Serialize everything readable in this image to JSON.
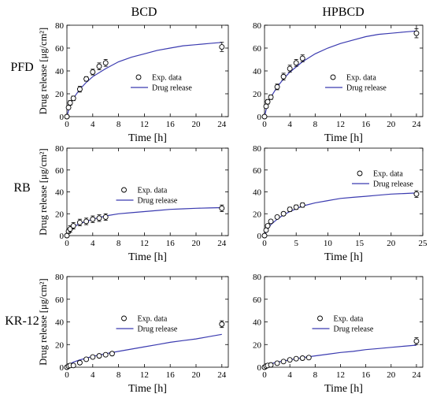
{
  "columns": [
    "BCD",
    "HPBCD"
  ],
  "rows": [
    "PFD",
    "RB",
    "KR-12"
  ],
  "colors": {
    "curve": "#3b3bb0",
    "axis": "#000000",
    "marker": "#000000"
  },
  "chart_data": [
    {
      "type": "line",
      "row": "PFD",
      "column": "BCD",
      "xlabel": "Time [h]",
      "ylabel": "Drug release [μg/cm²]",
      "xlim": [
        0,
        25
      ],
      "ylim": [
        0,
        80
      ],
      "xticks": [
        0,
        4,
        8,
        12,
        16,
        20,
        24
      ],
      "yticks": [
        0,
        20,
        40,
        60,
        80
      ],
      "legend": {
        "position": "center-right",
        "entries": [
          "Exp. data",
          "Drug release"
        ]
      },
      "series": [
        {
          "name": "Exp. data",
          "kind": "markers",
          "x": [
            0,
            0.25,
            0.5,
            1,
            2,
            3,
            4,
            5,
            6,
            24
          ],
          "y": [
            0,
            8,
            12,
            16,
            24,
            33,
            39,
            44,
            47,
            61
          ],
          "err": [
            0,
            1.5,
            2,
            2,
            2.5,
            2,
            2.5,
            3,
            3,
            4
          ]
        },
        {
          "name": "Drug release",
          "kind": "curve",
          "x": [
            0,
            0.5,
            1,
            2,
            3,
            4,
            6,
            8,
            10,
            12,
            14,
            16,
            18,
            20,
            22,
            24
          ],
          "y": [
            0,
            11,
            16,
            24,
            30,
            35,
            42,
            48,
            52,
            55,
            58,
            60,
            62,
            63,
            64,
            65
          ]
        }
      ]
    },
    {
      "type": "line",
      "row": "PFD",
      "column": "HPBCD",
      "xlabel": "Time [h]",
      "ylabel": "",
      "xlim": [
        0,
        25
      ],
      "ylim": [
        0,
        80
      ],
      "xticks": [
        0,
        4,
        8,
        12,
        16,
        20,
        24
      ],
      "yticks": [
        0,
        20,
        40,
        60,
        80
      ],
      "legend": {
        "position": "center-right",
        "entries": [
          "Exp. data",
          "Drug release"
        ]
      },
      "series": [
        {
          "name": "Exp. data",
          "kind": "markers",
          "x": [
            0,
            0.25,
            0.5,
            1,
            2,
            3,
            4,
            5,
            6,
            24
          ],
          "y": [
            0,
            9,
            13,
            17,
            26,
            35,
            42,
            47,
            51,
            73
          ],
          "err": [
            0,
            1.5,
            2,
            2,
            2.5,
            3,
            3,
            3,
            3,
            4
          ]
        },
        {
          "name": "Drug release",
          "kind": "curve",
          "x": [
            0,
            0.5,
            1,
            2,
            3,
            4,
            6,
            8,
            10,
            12,
            14,
            16,
            18,
            20,
            22,
            24
          ],
          "y": [
            0,
            12,
            17,
            26,
            33,
            39,
            48,
            55,
            60,
            64,
            67,
            70,
            72,
            73,
            74,
            75
          ]
        }
      ]
    },
    {
      "type": "line",
      "row": "RB",
      "column": "BCD",
      "xlabel": "Time [h]",
      "ylabel": "Drug release [μg/cm²]",
      "xlim": [
        0,
        25
      ],
      "ylim": [
        0,
        80
      ],
      "xticks": [
        0,
        4,
        8,
        12,
        16,
        20,
        24
      ],
      "yticks": [
        0,
        20,
        40,
        60,
        80
      ],
      "legend": {
        "position": "center",
        "entries": [
          "Exp. data",
          "Drug release"
        ]
      },
      "series": [
        {
          "name": "Exp. data",
          "kind": "markers",
          "x": [
            0,
            0.25,
            0.5,
            1,
            2,
            3,
            4,
            5,
            6,
            24
          ],
          "y": [
            0,
            4,
            6,
            9,
            12,
            13,
            15,
            16,
            17,
            25
          ],
          "err": [
            0,
            2,
            3,
            3,
            3,
            3,
            3,
            3,
            3,
            3
          ]
        },
        {
          "name": "Drug release",
          "kind": "curve",
          "x": [
            0,
            0.5,
            1,
            2,
            3,
            4,
            6,
            8,
            10,
            12,
            14,
            16,
            18,
            20,
            22,
            24
          ],
          "y": [
            0,
            5,
            8,
            11,
            13,
            15,
            18,
            20,
            21,
            22,
            23,
            24,
            24.5,
            25,
            25.3,
            25.6
          ]
        }
      ]
    },
    {
      "type": "line",
      "row": "RB",
      "column": "HPBCD",
      "xlabel": "Time [h]",
      "ylabel": "",
      "xlim": [
        0,
        25
      ],
      "ylim": [
        0,
        80
      ],
      "xticks": [
        0,
        5,
        10,
        15,
        20,
        25
      ],
      "yticks": [
        0,
        20,
        40,
        60,
        80
      ],
      "legend": {
        "position": "top-right",
        "entries": [
          "Exp. data",
          "Drug release"
        ]
      },
      "series": [
        {
          "name": "Exp. data",
          "kind": "markers",
          "x": [
            0,
            0.25,
            0.5,
            1,
            2,
            3,
            4,
            5,
            6,
            24
          ],
          "y": [
            0,
            5,
            9,
            13,
            17,
            20,
            24,
            26,
            28,
            38
          ],
          "err": [
            0,
            1,
            1.5,
            1.5,
            1.5,
            1.5,
            2,
            2,
            2,
            3
          ]
        },
        {
          "name": "Drug release",
          "kind": "curve",
          "x": [
            0,
            0.5,
            1,
            2,
            3,
            4,
            6,
            8,
            10,
            12,
            14,
            16,
            18,
            20,
            22,
            24
          ],
          "y": [
            0,
            6,
            10,
            15,
            19,
            22,
            27,
            30,
            32,
            34,
            35,
            36,
            37,
            38,
            38.5,
            39
          ]
        }
      ]
    },
    {
      "type": "line",
      "row": "KR-12",
      "column": "BCD",
      "xlabel": "Time [h]",
      "ylabel": "Drug release [μg/cm²]",
      "xlim": [
        0,
        25
      ],
      "ylim": [
        0,
        80
      ],
      "xticks": [
        0,
        4,
        8,
        12,
        16,
        20,
        24
      ],
      "yticks": [
        0,
        20,
        40,
        60,
        80
      ],
      "legend": {
        "position": "center",
        "entries": [
          "Exp. data",
          "Drug release"
        ]
      },
      "series": [
        {
          "name": "Exp. data",
          "kind": "markers",
          "x": [
            0,
            0.25,
            0.5,
            1,
            2,
            3,
            4,
            5,
            6,
            7,
            24
          ],
          "y": [
            0,
            1,
            1.5,
            1.5,
            4,
            7,
            9,
            10,
            11,
            12,
            38
          ],
          "err": [
            0,
            0.5,
            0.5,
            0.5,
            1,
            1,
            1,
            1,
            1,
            1.5,
            3
          ]
        },
        {
          "name": "Drug release",
          "kind": "curve",
          "x": [
            0,
            0.5,
            1,
            2,
            3,
            4,
            6,
            8,
            10,
            12,
            14,
            16,
            18,
            20,
            22,
            24
          ],
          "y": [
            0,
            3,
            4.5,
            6.5,
            8,
            9.5,
            12,
            14,
            16,
            18,
            20,
            22,
            23.5,
            25,
            27,
            29
          ]
        }
      ]
    },
    {
      "type": "line",
      "row": "KR-12",
      "column": "HPBCD",
      "xlabel": "Time [h]",
      "ylabel": "",
      "xlim": [
        0,
        25
      ],
      "ylim": [
        0,
        80
      ],
      "xticks": [
        0,
        4,
        8,
        12,
        16,
        20,
        24
      ],
      "yticks": [
        0,
        20,
        40,
        60,
        80
      ],
      "legend": {
        "position": "center",
        "entries": [
          "Exp. data",
          "Drug release"
        ]
      },
      "series": [
        {
          "name": "Exp. data",
          "kind": "markers",
          "x": [
            0,
            0.25,
            0.5,
            1,
            2,
            3,
            4,
            5,
            6,
            7,
            24
          ],
          "y": [
            0,
            1,
            1.5,
            2,
            3.5,
            5,
            6.5,
            7.5,
            8,
            8.5,
            23
          ],
          "err": [
            0,
            0.5,
            0.5,
            0.5,
            0.8,
            0.8,
            0.8,
            1,
            1,
            1,
            3
          ]
        },
        {
          "name": "Drug release",
          "kind": "curve",
          "x": [
            0,
            0.5,
            1,
            2,
            3,
            4,
            6,
            8,
            10,
            12,
            14,
            16,
            18,
            20,
            22,
            24
          ],
          "y": [
            0,
            2,
            3,
            4.5,
            5.5,
            6.5,
            8.5,
            10,
            11.5,
            13,
            14,
            15.5,
            16.5,
            17.5,
            18.5,
            19.5
          ]
        }
      ]
    }
  ]
}
